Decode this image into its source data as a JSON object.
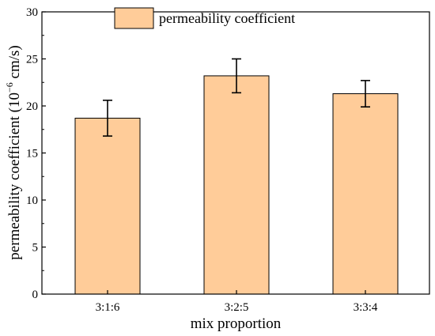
{
  "chart_data": {
    "type": "bar",
    "categories": [
      "3:1:6",
      "3:2:5",
      "3:3:4"
    ],
    "series": [
      {
        "name": "permeability coefficient",
        "values": [
          18.7,
          23.2,
          21.3
        ],
        "error": [
          1.9,
          1.8,
          1.4
        ]
      }
    ],
    "xlabel": "mix proportion",
    "ylabel": {
      "prefix": "permeability coefficient (10",
      "exponent": "−6",
      "suffix": " cm/s)"
    },
    "ylim": [
      0,
      30
    ],
    "yticks": [
      0,
      5,
      10,
      15,
      20,
      25,
      30
    ],
    "grid": false,
    "legend": "top",
    "bar_color": "#FFCC99",
    "bar_edge_color": "#000000"
  }
}
